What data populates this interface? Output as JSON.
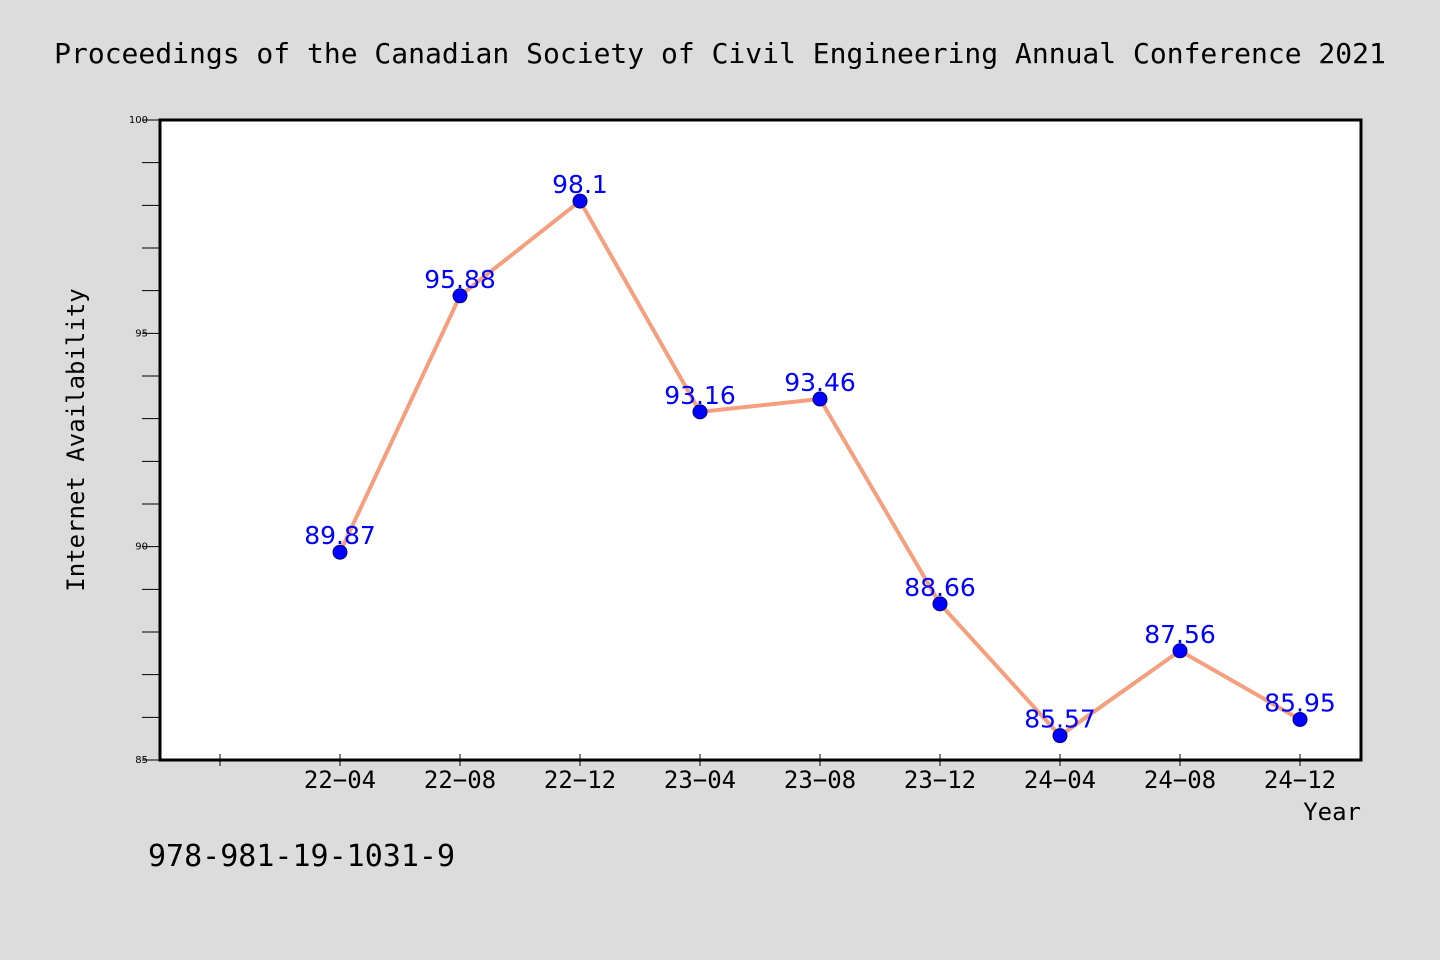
{
  "page": {
    "title": "Proceedings of the Canadian Society of Civil Engineering Annual Conference 2021",
    "footnote": "978-981-19-1031-9"
  },
  "colors": {
    "background": "#dcdcdc",
    "plot_background": "#ffffff",
    "line": "#f4a07f",
    "marker": "#0000ff",
    "data_label": "#0000ff"
  },
  "chart_data": {
    "type": "line",
    "title": "",
    "xlabel": "Year",
    "ylabel": "Internet Availability",
    "categories": [
      "22-04",
      "22-08",
      "22-12",
      "23-04",
      "23-08",
      "23-12",
      "24-04",
      "24-08",
      "24-12"
    ],
    "x_tick_labels": [
      "22−04",
      "22−08",
      "22−12",
      "23−04",
      "23−08",
      "23−12",
      "24−04",
      "24−08",
      "24−12"
    ],
    "values": [
      89.87,
      95.88,
      98.1,
      93.16,
      93.46,
      88.66,
      85.57,
      87.56,
      85.95
    ],
    "data_labels": [
      "89.87",
      "95.88",
      "98.1",
      "93.16",
      "93.46",
      "88.66",
      "85.57",
      "87.56",
      "85.95"
    ],
    "ylim": [
      85,
      100
    ],
    "y_ticks": [
      85,
      90,
      95,
      100
    ],
    "y_tick_labels": [
      "85",
      "90",
      "95",
      "100"
    ],
    "y_minor_step": 1,
    "x_extra_leading_slot": true,
    "grid": false,
    "legend": "none"
  }
}
